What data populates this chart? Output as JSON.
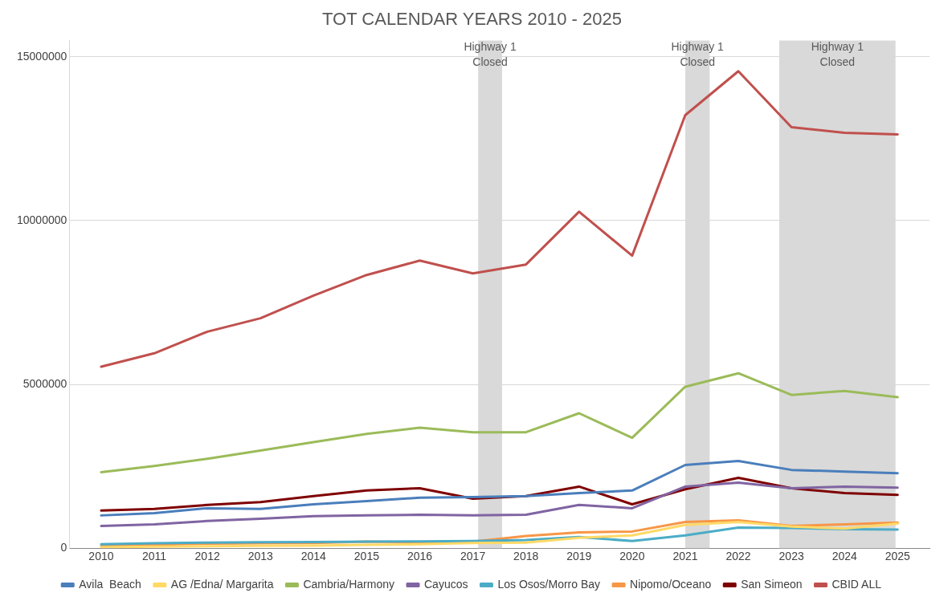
{
  "chart_data": {
    "type": "line",
    "title": "TOT CALENDAR YEARS 2010 - 2025",
    "x": [
      2010,
      2011,
      2012,
      2013,
      2014,
      2015,
      2016,
      2017,
      2018,
      2019,
      2020,
      2021,
      2022,
      2023,
      2024,
      2025
    ],
    "xlim": [
      2009.4,
      2025.6
    ],
    "xticks": [
      2010,
      2011,
      2012,
      2013,
      2014,
      2015,
      2016,
      2017,
      2018,
      2019,
      2020,
      2021,
      2022,
      2023,
      2024,
      2025
    ],
    "ylim": [
      0,
      15500000
    ],
    "yticks": [
      0,
      5000000,
      10000000,
      15000000
    ],
    "grid": "y",
    "legend": "bottom",
    "marker": "none",
    "line_style": "solid",
    "series": [
      {
        "name": "Avila  Beach",
        "color": "#4a7ebb",
        "values": [
          1000000,
          1070000,
          1220000,
          1200000,
          1340000,
          1440000,
          1540000,
          1560000,
          1590000,
          1680000,
          1760000,
          2540000,
          2660000,
          2390000,
          2340000,
          2290000
        ]
      },
      {
        "name": "AG /Edna/ Margarita",
        "color": "#ffd966",
        "values": [
          30000,
          50000,
          60000,
          70000,
          80000,
          100000,
          120000,
          160000,
          170000,
          320000,
          390000,
          710000,
          800000,
          660000,
          600000,
          750000
        ]
      },
      {
        "name": "Cambria/Harmony",
        "color": "#9bbb59",
        "values": [
          2320000,
          2510000,
          2730000,
          2980000,
          3240000,
          3490000,
          3680000,
          3540000,
          3540000,
          4120000,
          3370000,
          4930000,
          5340000,
          4680000,
          4800000,
          4610000
        ]
      },
      {
        "name": "Cayucos",
        "color": "#8064a2",
        "values": [
          680000,
          730000,
          830000,
          900000,
          980000,
          1000000,
          1020000,
          1000000,
          1020000,
          1320000,
          1220000,
          1880000,
          2000000,
          1830000,
          1880000,
          1850000
        ]
      },
      {
        "name": "Los Osos/Morro Bay",
        "color": "#4bacc6",
        "values": [
          120000,
          150000,
          170000,
          180000,
          190000,
          200000,
          210000,
          220000,
          250000,
          340000,
          220000,
          390000,
          630000,
          620000,
          580000,
          570000
        ]
      },
      {
        "name": "Nipomo/Oceano",
        "color": "#f79646",
        "values": [
          80000,
          100000,
          140000,
          150000,
          160000,
          200000,
          180000,
          200000,
          370000,
          480000,
          510000,
          800000,
          850000,
          680000,
          730000,
          780000
        ]
      },
      {
        "name": "San Simeon",
        "color": "#7f0000",
        "values": [
          1150000,
          1200000,
          1320000,
          1410000,
          1590000,
          1760000,
          1830000,
          1510000,
          1590000,
          1880000,
          1340000,
          1800000,
          2150000,
          1830000,
          1680000,
          1630000
        ]
      },
      {
        "name": "CBID ALL",
        "color": "#c0504d",
        "values": [
          5540000,
          5950000,
          6610000,
          7020000,
          7710000,
          8340000,
          8780000,
          8390000,
          8660000,
          10270000,
          8930000,
          13220000,
          14560000,
          12850000,
          12680000,
          12630000
        ]
      }
    ],
    "bands": [
      {
        "axis": "x",
        "from": 2017.1,
        "to": 2017.55,
        "label": "Highway 1\nClosed",
        "color": "#d9d9d9"
      },
      {
        "axis": "x",
        "from": 2021.0,
        "to": 2021.46,
        "label": "Highway 1\nClosed",
        "color": "#d9d9d9"
      },
      {
        "axis": "x",
        "from": 2022.77,
        "to": 2024.96,
        "label": "Highway 1\nClosed",
        "color": "#d9d9d9"
      }
    ]
  }
}
